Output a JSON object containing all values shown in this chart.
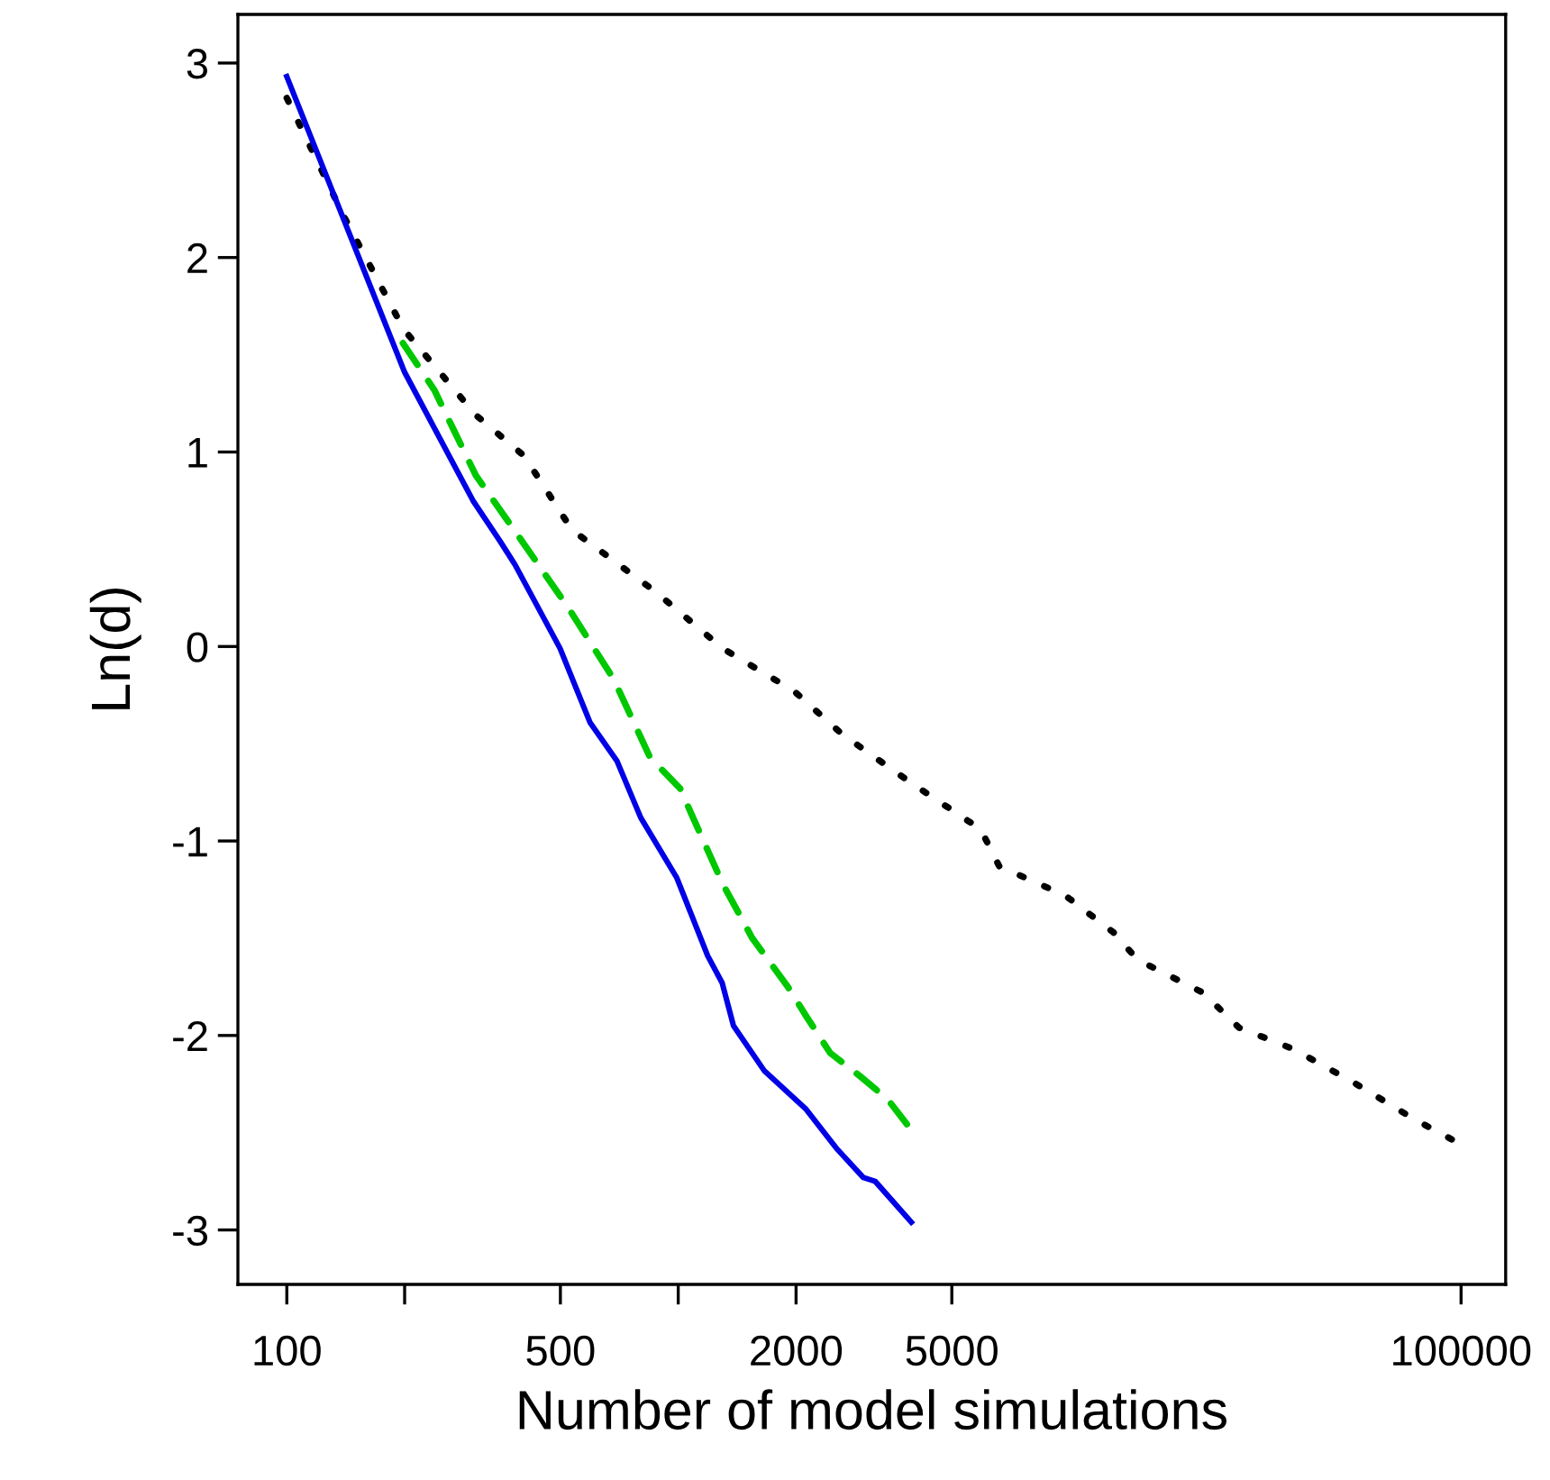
{
  "chart_data": {
    "type": "line",
    "xlabel": "Number of model simulations",
    "ylabel": "Ln(d)",
    "log": "x",
    "grid": false,
    "legend": false,
    "marker": "none",
    "xlim": [
      75,
      130000
    ],
    "xticks": [
      100,
      {
        "value": 200,
        "label": null
      },
      500,
      {
        "value": 1000,
        "label": null
      },
      2000,
      5000,
      100000
    ],
    "ylim": [
      -3.28,
      3.25
    ],
    "yticks": [
      -3,
      -2,
      -1,
      0,
      1,
      2,
      3
    ],
    "series": [
      {
        "color": "#000000",
        "line_style": "dotted",
        "x": [
          100,
          140,
          167,
          199,
          304,
          404,
          535,
          877,
          1299,
          1979,
          2619,
          3864,
          5925,
          6610,
          9740,
          12940,
          14900,
          21900,
          27100,
          37300,
          53000,
          75800,
          100000
        ],
        "values": [
          2.82,
          2.21,
          1.92,
          1.63,
          1.19,
          0.98,
          0.6,
          0.28,
          -0.01,
          -0.23,
          -0.45,
          -0.69,
          -0.94,
          -1.13,
          -1.28,
          -1.47,
          -1.61,
          -1.78,
          -1.96,
          -2.07,
          -2.24,
          -2.43,
          -2.56
        ]
      },
      {
        "color": "#00c800",
        "line_style": "dashed",
        "x": [
          198,
          238,
          304,
          390,
          499,
          535,
          685,
          847,
          1011,
          1125,
          1299,
          1546,
          1906,
          2122,
          2445,
          2917,
          3434,
          3955
        ],
        "values": [
          1.56,
          1.32,
          0.88,
          0.57,
          0.26,
          0.17,
          -0.17,
          -0.57,
          -0.73,
          -0.94,
          -1.22,
          -1.5,
          -1.75,
          -1.9,
          -2.09,
          -2.21,
          -2.33,
          -2.49
        ]
      },
      {
        "color": "#0000e6",
        "line_style": "solid",
        "x": [
          100,
          200,
          299,
          351,
          383,
          499,
          595,
          698,
          802,
          992,
          1189,
          1295,
          1384,
          1657,
          2123,
          2536,
          2970,
          3185,
          3940
        ],
        "values": [
          2.93,
          1.41,
          0.75,
          0.54,
          0.42,
          -0.01,
          -0.39,
          -0.59,
          -0.88,
          -1.19,
          -1.59,
          -1.73,
          -1.95,
          -2.18,
          -2.38,
          -2.58,
          -2.73,
          -2.75,
          -2.96
        ]
      }
    ]
  }
}
